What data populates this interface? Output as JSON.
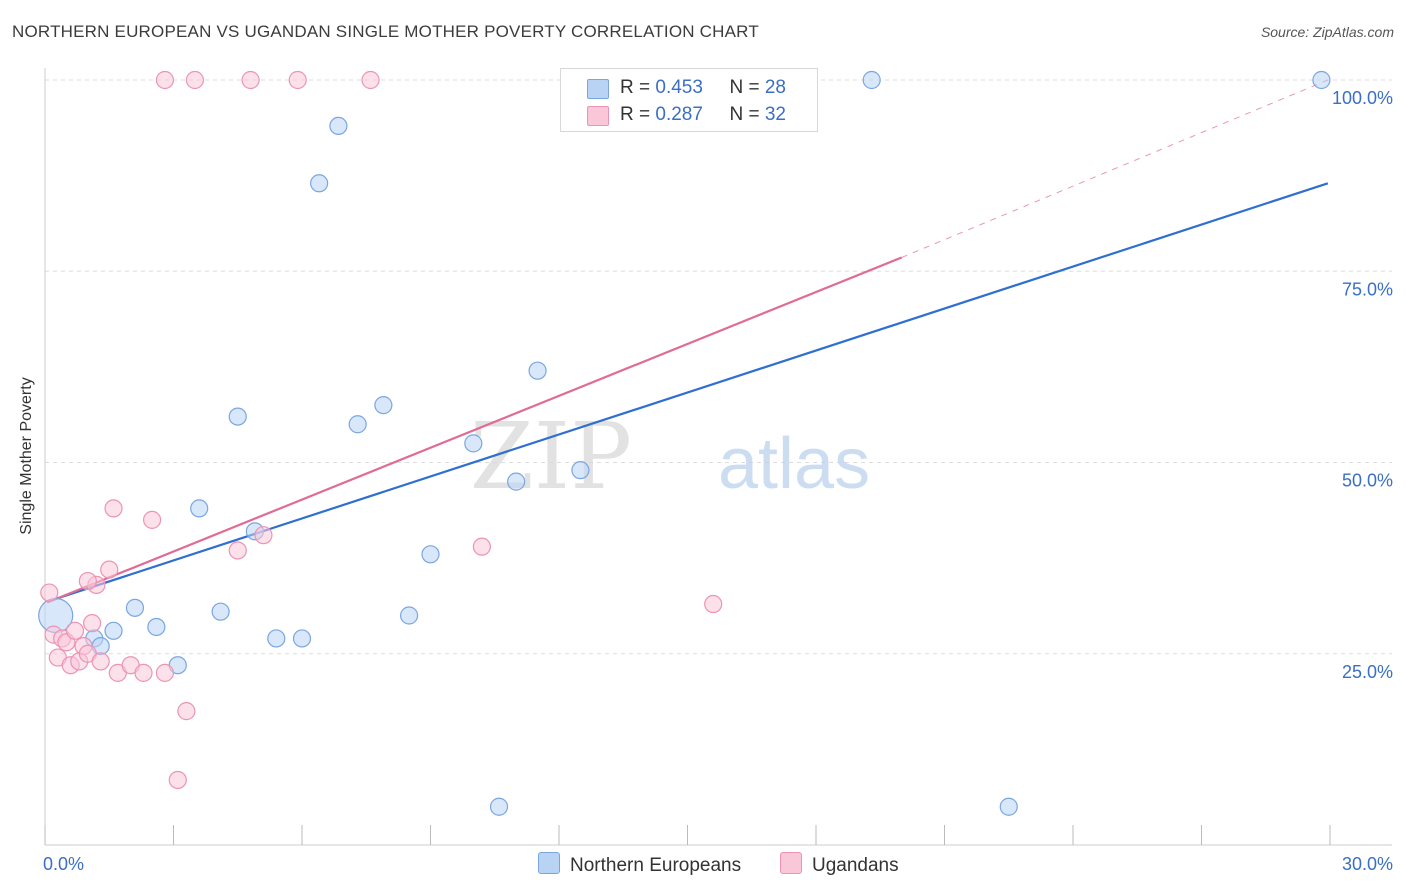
{
  "title": "NORTHERN EUROPEAN VS UGANDAN SINGLE MOTHER POVERTY CORRELATION CHART",
  "source": "Source: ZipAtlas.com",
  "watermark": {
    "part1": "ZIP",
    "part2": "atlas"
  },
  "legend": {
    "rows": [
      {
        "r_label": "R = ",
        "r_value": "0.453",
        "n_label": "N = ",
        "n_value": "28"
      },
      {
        "r_label": "R = ",
        "r_value": "0.287",
        "n_label": "N = ",
        "n_value": "32"
      }
    ]
  },
  "colors": {
    "blue_fill": "#b9d3f5",
    "blue_stroke": "#7aa6e0",
    "blue_line": "#2f6fcf",
    "pink_fill": "#f9c7d8",
    "pink_stroke": "#ec94b3",
    "pink_line": "#e06b96",
    "axis_text": "#3a6fc4",
    "grid": "#dddddd"
  },
  "chart_data": {
    "type": "scatter",
    "title": "NORTHERN EUROPEAN VS UGANDAN SINGLE MOTHER POVERTY CORRELATION CHART",
    "xlabel": "",
    "ylabel": "Single Mother Poverty",
    "xlim": [
      0,
      30
    ],
    "ylim": [
      0,
      102
    ],
    "x_tick_labels": [
      "0.0%",
      "30.0%"
    ],
    "y_ticks": [
      25,
      50,
      75,
      100
    ],
    "y_tick_labels": [
      "25.0%",
      "50.0%",
      "75.0%",
      "100.0%"
    ],
    "grid": true,
    "legend_position": "top-center",
    "series": [
      {
        "name": "Northern Europeans",
        "color": "#7aa6e0",
        "points": [
          [
            0.25,
            30.0
          ],
          [
            1.15,
            27.0
          ],
          [
            1.3,
            26.0
          ],
          [
            1.6,
            28.0
          ],
          [
            2.1,
            31.0
          ],
          [
            2.6,
            28.5
          ],
          [
            3.1,
            23.5
          ],
          [
            3.6,
            44.0
          ],
          [
            4.1,
            30.5
          ],
          [
            4.5,
            56.0
          ],
          [
            4.9,
            41.0
          ],
          [
            5.4,
            27.0
          ],
          [
            6.0,
            27.0
          ],
          [
            6.4,
            86.5
          ],
          [
            6.85,
            94.0
          ],
          [
            7.3,
            55.0
          ],
          [
            7.9,
            57.5
          ],
          [
            8.5,
            30.0
          ],
          [
            9.0,
            38.0
          ],
          [
            10.0,
            52.5
          ],
          [
            10.6,
            5.0
          ],
          [
            11.0,
            47.5
          ],
          [
            11.5,
            62.0
          ],
          [
            12.5,
            49.0
          ],
          [
            13.7,
            100.0
          ],
          [
            19.3,
            100.0
          ],
          [
            22.5,
            5.0
          ],
          [
            29.8,
            100.0
          ]
        ],
        "trend": {
          "x": [
            0.05,
            29.95
          ],
          "y": [
            31.8,
            86.5
          ]
        }
      },
      {
        "name": "Ugandans",
        "color": "#ec94b3",
        "points": [
          [
            0.1,
            33.0
          ],
          [
            0.2,
            27.5
          ],
          [
            0.3,
            24.5
          ],
          [
            0.4,
            27.0
          ],
          [
            0.5,
            26.5
          ],
          [
            0.6,
            23.5
          ],
          [
            0.7,
            28.0
          ],
          [
            0.8,
            24.0
          ],
          [
            0.9,
            26.0
          ],
          [
            1.0,
            25.0
          ],
          [
            1.1,
            29.0
          ],
          [
            1.2,
            34.0
          ],
          [
            1.3,
            24.0
          ],
          [
            1.5,
            36.0
          ],
          [
            1.6,
            44.0
          ],
          [
            1.7,
            22.5
          ],
          [
            2.0,
            23.5
          ],
          [
            2.3,
            22.5
          ],
          [
            2.5,
            42.5
          ],
          [
            2.8,
            22.5
          ],
          [
            3.1,
            8.5
          ],
          [
            3.3,
            17.5
          ],
          [
            3.5,
            100.0
          ],
          [
            4.5,
            38.5
          ],
          [
            4.8,
            100.0
          ],
          [
            5.1,
            40.5
          ],
          [
            5.9,
            100.0
          ],
          [
            7.6,
            100.0
          ],
          [
            10.2,
            39.0
          ],
          [
            15.6,
            31.5
          ],
          [
            2.8,
            100.0
          ],
          [
            1.0,
            34.5
          ]
        ],
        "trend": {
          "x": [
            0.05,
            20.0
          ],
          "y": [
            31.7,
            76.8
          ]
        },
        "trend_dashed": {
          "x": [
            20.0,
            29.95
          ],
          "y": [
            76.8,
            100.0
          ]
        }
      }
    ]
  }
}
